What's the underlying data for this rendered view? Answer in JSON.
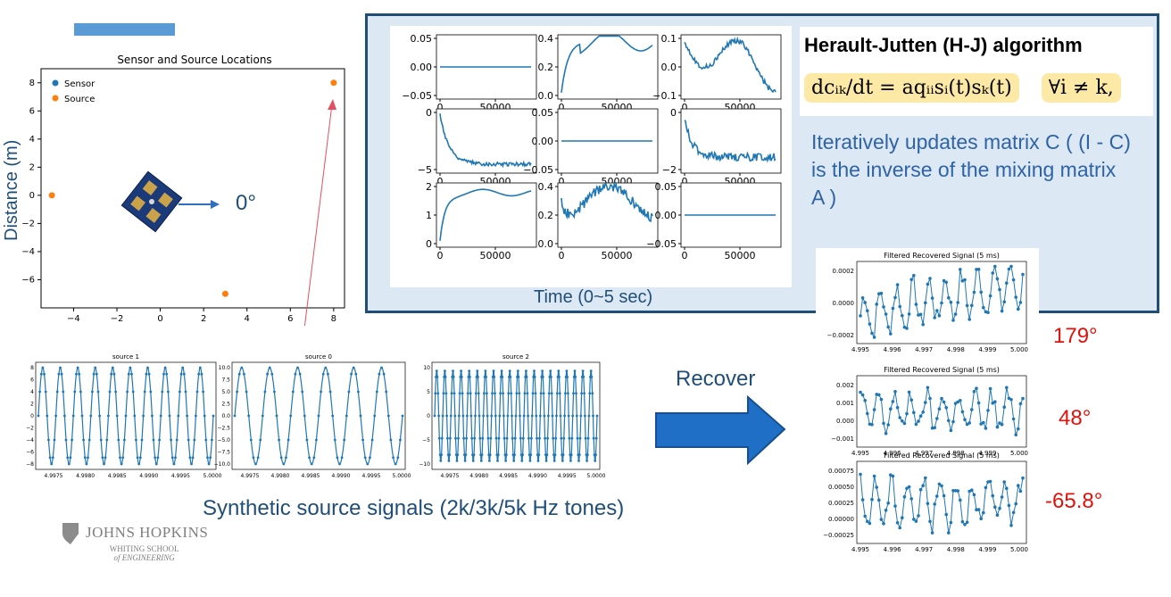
{
  "location_plot": {
    "title": "Sensor and Source Locations",
    "ylabel": "Distance (m)",
    "legend": [
      "Sensor",
      "Source"
    ],
    "x_ticks": [
      "−4",
      "−2",
      "0",
      "2",
      "4",
      "6",
      "8"
    ],
    "y_ticks": [
      "8",
      "6",
      "4",
      "2",
      "0",
      "−2",
      "−4",
      "−6"
    ],
    "sources": [
      [
        -5,
        0
      ],
      [
        3,
        -7
      ],
      [
        8,
        8
      ]
    ],
    "angle_label": "0°",
    "colors": {
      "sensor": "#1f77b4",
      "source": "#ff7f0e",
      "arrow": "#e05060"
    }
  },
  "panel": {
    "hj_title": "Herault-Jutten (H-J) algorithm",
    "formula_main": "dcᵢₖ/dt = aqᵢᵢsᵢ(t)sₖ(t)",
    "formula_cond": "∀i ≠ k,",
    "description": "Iteratively updates matrix C ( (I - C) is the inverse of the mixing matrix A )",
    "time_label": "Time (0~5 sec)"
  },
  "grid_plots": {
    "x_tick_labels": [
      "0",
      "50000"
    ],
    "panels": [
      {
        "id": "r1c1",
        "ylabels": [
          "0.05",
          "0.00",
          "−0.05"
        ]
      },
      {
        "id": "r1c2",
        "ylabels": [
          "0.4",
          "0.2",
          "0.0"
        ]
      },
      {
        "id": "r1c3",
        "ylabels": [
          "0.1",
          "0.0",
          "−0.1"
        ]
      },
      {
        "id": "r2c1",
        "ylabels": [
          "0",
          "−5"
        ]
      },
      {
        "id": "r2c2",
        "ylabels": [
          "0.05",
          "0.00",
          "−0.05"
        ]
      },
      {
        "id": "r2c3",
        "ylabels": [
          "0",
          "−2"
        ]
      },
      {
        "id": "r3c1",
        "ylabels": [
          "2",
          "1",
          "0"
        ]
      },
      {
        "id": "r3c2",
        "ylabels": [
          "0.4",
          "0.2",
          "0.0"
        ]
      },
      {
        "id": "r3c3",
        "ylabels": [
          "0.05",
          "0.00",
          "−0.05"
        ]
      }
    ]
  },
  "source_plots": [
    {
      "title": "source 1",
      "yticks": [
        "8",
        "6",
        "4",
        "2",
        "0",
        "−2",
        "−4",
        "−6",
        "−8"
      ],
      "xticks": [
        "4.9975",
        "4.9980",
        "4.9985",
        "4.9990",
        "4.9995",
        "5.0000"
      ]
    },
    {
      "title": "source 0",
      "yticks": [
        "10.0",
        "7.5",
        "5.0",
        "2.5",
        "0.0",
        "−2.5",
        "−5.0",
        "−7.5",
        "−10.0"
      ],
      "xticks": [
        "4.9975",
        "4.9980",
        "4.9985",
        "4.9990",
        "4.9995",
        "5.0000"
      ]
    },
    {
      "title": "source 2",
      "yticks": [
        "10",
        "5",
        "0",
        "−5",
        "−10"
      ],
      "xticks": [
        "4.9975",
        "4.9980",
        "4.9985",
        "4.9990",
        "4.9995",
        "5.0000"
      ]
    }
  ],
  "recover_label": "Recover",
  "synthetic_label": "Synthetic source signals (2k/3k/5k Hz tones)",
  "recovered_plots": [
    {
      "title": "Filtered Recovered Signal (5 ms)",
      "yticks": [
        "0.0002",
        "0.0000",
        "−0.0002"
      ],
      "angle": "179°"
    },
    {
      "title": "Filtered Recovered Signal (5 ms)",
      "yticks": [
        "0.002",
        "0.001",
        "0.000",
        "−0.001"
      ],
      "angle": "48°"
    },
    {
      "title": "Filtered Recovered Signal (5 ms)",
      "yticks": [
        "0.00075",
        "0.00050",
        "0.00025",
        "0.00000",
        "−0.00025"
      ],
      "angle": "-65.8°"
    }
  ],
  "recovered_xticks": [
    "4.995",
    "4.996",
    "4.997",
    "4.998",
    "4.999",
    "5.000"
  ],
  "logo": {
    "line1": "JOHNS HOPKINS",
    "line2": "WHITING SCHOOL",
    "line3": "of ENGINEERING"
  }
}
